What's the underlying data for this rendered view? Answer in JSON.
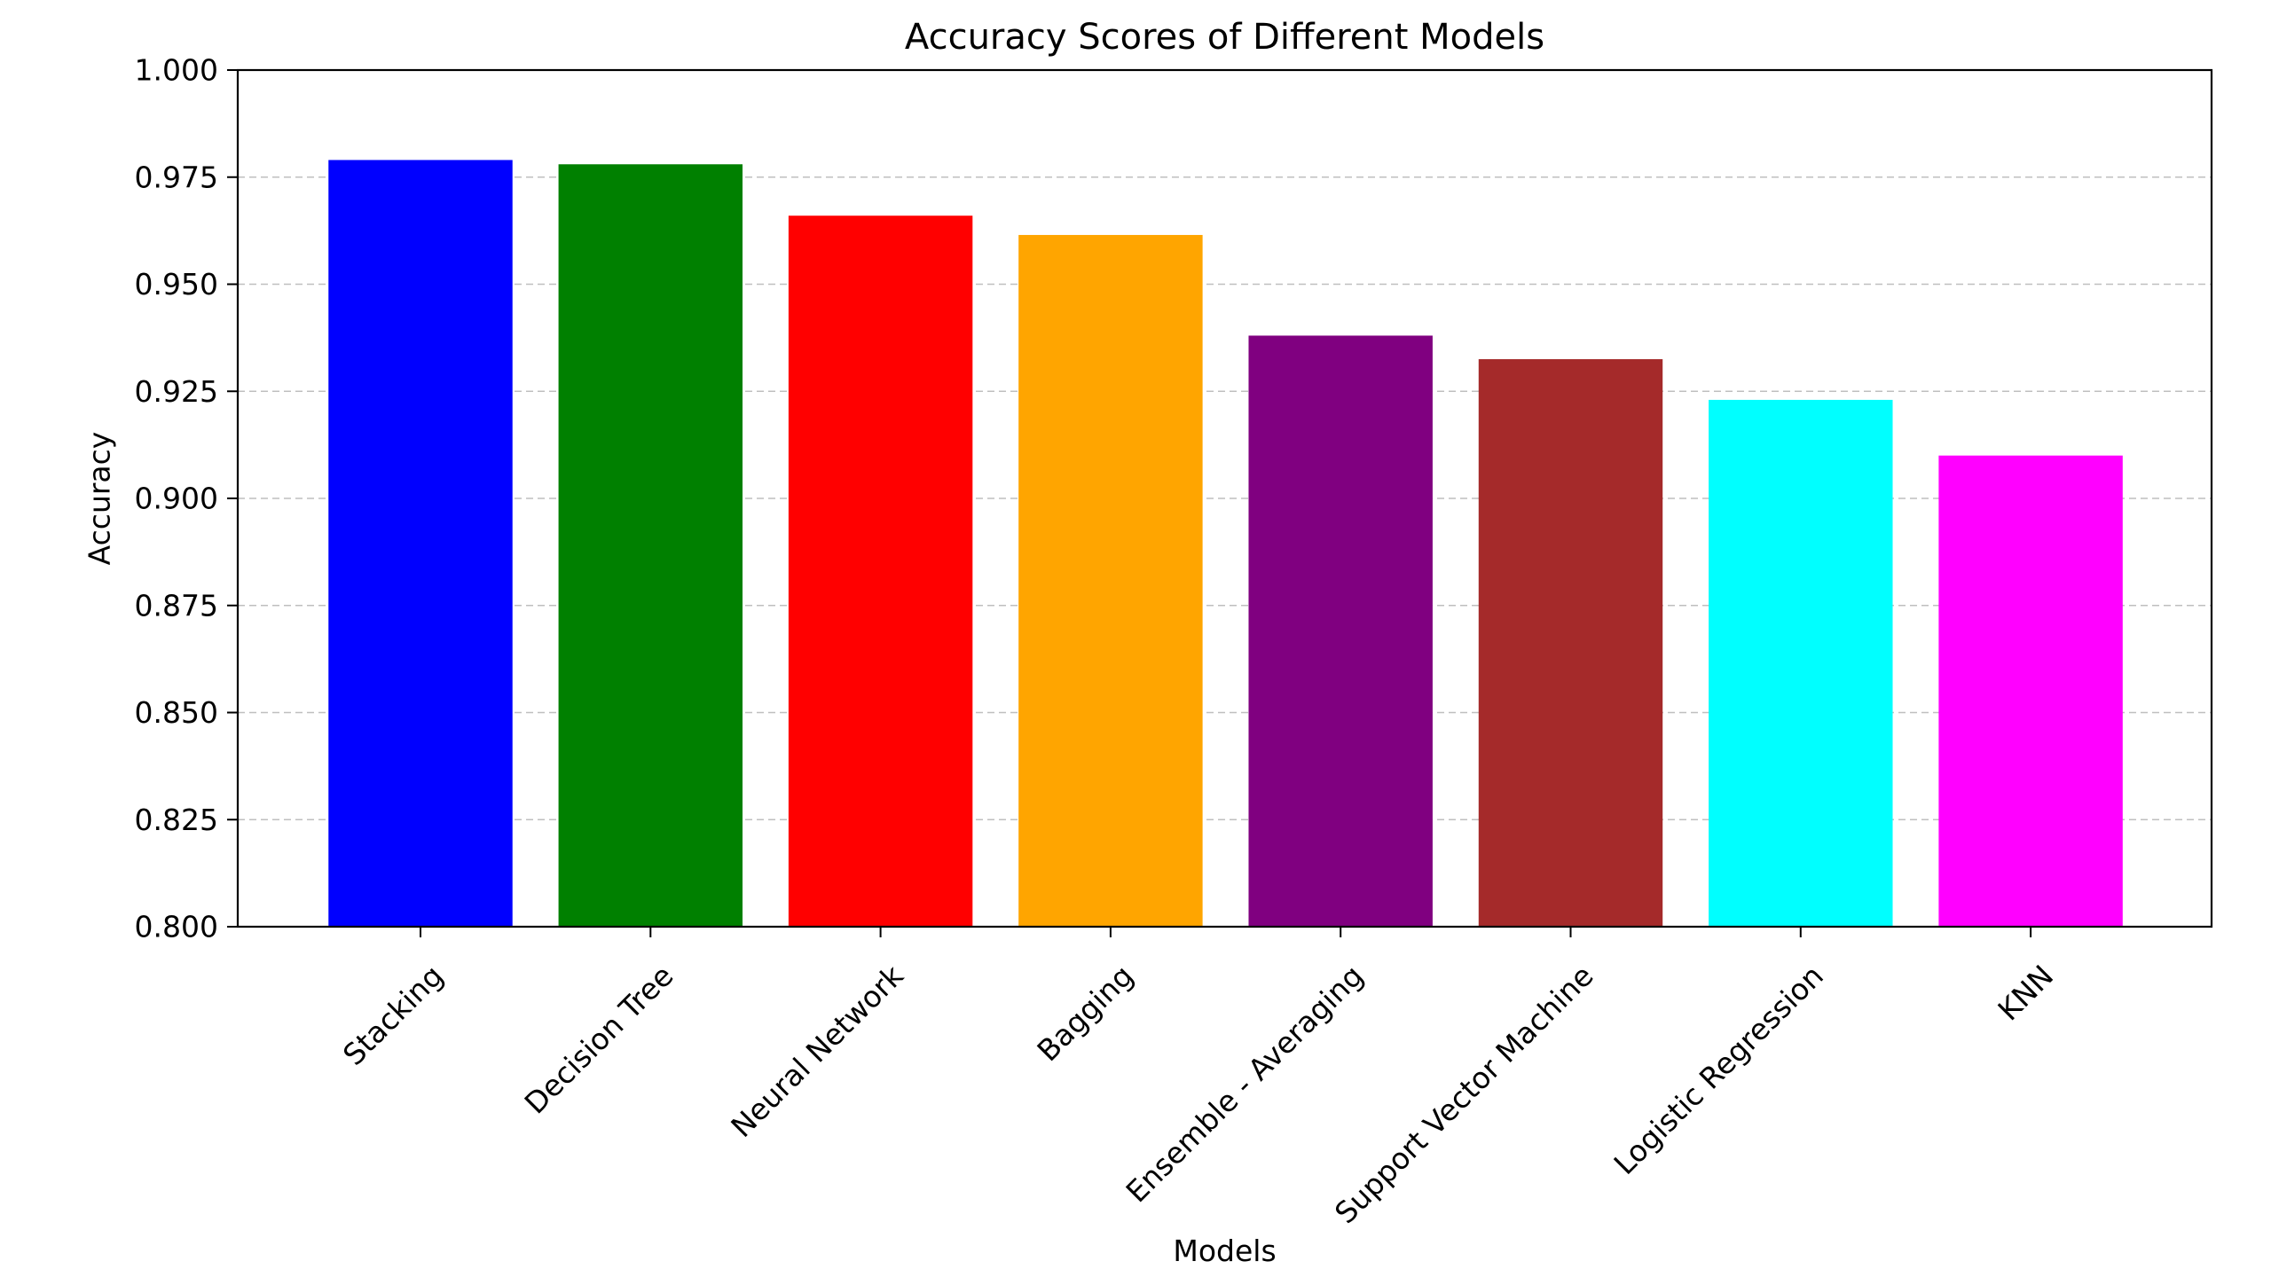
{
  "chart_data": {
    "type": "bar",
    "title": "Accuracy Scores of Different Models",
    "xlabel": "Models",
    "ylabel": "Accuracy",
    "categories": [
      "Stacking",
      "Decision Tree",
      "Neural Network",
      "Bagging",
      "Ensemble - Averaging",
      "Support Vector Machine",
      "Logistic Regression",
      "KNN"
    ],
    "values": [
      0.979,
      0.978,
      0.966,
      0.9615,
      0.938,
      0.9325,
      0.923,
      0.91
    ],
    "colors": [
      "#0000ff",
      "#008000",
      "#ff0000",
      "#ffa500",
      "#800080",
      "#a52a2a",
      "#00ffff",
      "#ff00ff"
    ],
    "ylim": [
      0.8,
      1.0
    ],
    "yticks": [
      0.8,
      0.825,
      0.85,
      0.875,
      0.9,
      0.925,
      0.95,
      0.975,
      1.0
    ],
    "ytick_labels": [
      "0.800",
      "0.825",
      "0.850",
      "0.875",
      "0.900",
      "0.925",
      "0.950",
      "0.975",
      "1.000"
    ],
    "grid": "y-dashed",
    "legend": "none"
  }
}
